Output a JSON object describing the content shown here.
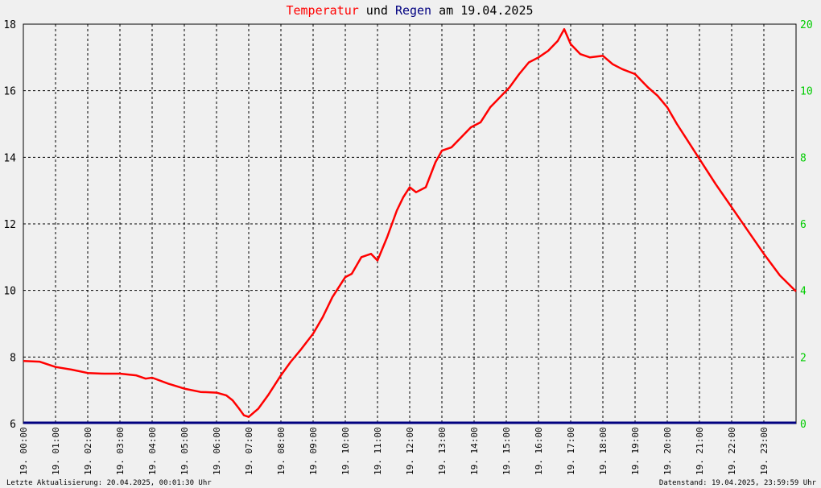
{
  "chart_data": {
    "type": "line",
    "title": {
      "part1": "Temperatur",
      "part2": " und ",
      "part3": "Regen",
      "part4": " am 19.04.2025"
    },
    "colors": {
      "temperature": "#ff0000",
      "rain": "#000080",
      "left_axis": "#000000",
      "right_axis": "#00cc00",
      "grid": "#000000",
      "background": "#f0f0f0"
    },
    "grid": true,
    "y_left": {
      "min": 6,
      "max": 18,
      "ticks": [
        6,
        8,
        10,
        12,
        14,
        16,
        18
      ]
    },
    "y_right": {
      "min": 0,
      "max": 20,
      "ticks": [
        0,
        2,
        4,
        6,
        8,
        10,
        20
      ],
      "tick_values_pos": [
        0,
        2,
        4,
        6,
        8,
        10,
        12
      ]
    },
    "x_range_hours": [
      0,
      24
    ],
    "x_ticks": [
      {
        "h": 0,
        "label": "19. 00:00"
      },
      {
        "h": 1,
        "label": "19. 01:00"
      },
      {
        "h": 2,
        "label": "19. 02:00"
      },
      {
        "h": 3,
        "label": "19. 03:00"
      },
      {
        "h": 4,
        "label": "19. 04:00"
      },
      {
        "h": 5,
        "label": "19. 05:00"
      },
      {
        "h": 6,
        "label": "19. 06:00"
      },
      {
        "h": 7,
        "label": "19. 07:00"
      },
      {
        "h": 8,
        "label": "19. 08:00"
      },
      {
        "h": 9,
        "label": "19. 09:00"
      },
      {
        "h": 10,
        "label": "19. 10:00"
      },
      {
        "h": 11,
        "label": "19. 11:00"
      },
      {
        "h": 12,
        "label": "19. 12:00"
      },
      {
        "h": 13,
        "label": "19. 13:00"
      },
      {
        "h": 14,
        "label": "19. 14:00"
      },
      {
        "h": 15,
        "label": "19. 15:00"
      },
      {
        "h": 16,
        "label": "19. 16:00"
      },
      {
        "h": 17,
        "label": "19. 17:00"
      },
      {
        "h": 18,
        "label": "19. 18:00"
      },
      {
        "h": 19,
        "label": "19. 19:00"
      },
      {
        "h": 20,
        "label": "19. 20:00"
      },
      {
        "h": 21,
        "label": "19. 21:00"
      },
      {
        "h": 22,
        "label": "19. 22:00"
      },
      {
        "h": 23,
        "label": "19. 23:00"
      }
    ],
    "series": [
      {
        "key": "temperature",
        "x": [
          0,
          0.5,
          1,
          1.5,
          2,
          2.5,
          3,
          3.5,
          3.8,
          4,
          4.5,
          5,
          5.5,
          6,
          6.3,
          6.5,
          6.7,
          6.85,
          7,
          7.3,
          7.6,
          8,
          8.3,
          8.6,
          9,
          9.3,
          9.6,
          10,
          10.2,
          10.5,
          10.8,
          11,
          11.3,
          11.6,
          11.8,
          12,
          12.2,
          12.5,
          12.8,
          13,
          13.3,
          13.6,
          13.9,
          14.2,
          14.5,
          14.8,
          15.1,
          15.4,
          15.7,
          16,
          16.3,
          16.6,
          16.8,
          17,
          17.3,
          17.6,
          18,
          18.3,
          18.6,
          19,
          19.4,
          19.7,
          20,
          20.3,
          20.6,
          21,
          21.5,
          22,
          22.5,
          23,
          23.5,
          24
        ],
        "y": [
          7.88,
          7.86,
          7.7,
          7.62,
          7.52,
          7.5,
          7.5,
          7.45,
          7.35,
          7.38,
          7.2,
          7.05,
          6.95,
          6.93,
          6.85,
          6.7,
          6.45,
          6.25,
          6.2,
          6.45,
          6.85,
          7.45,
          7.85,
          8.2,
          8.7,
          9.2,
          9.8,
          10.4,
          10.5,
          11.0,
          11.1,
          10.9,
          11.6,
          12.4,
          12.8,
          13.1,
          12.95,
          13.1,
          13.85,
          14.2,
          14.3,
          14.6,
          14.9,
          15.05,
          15.5,
          15.8,
          16.1,
          16.5,
          16.85,
          17.0,
          17.2,
          17.5,
          17.85,
          17.4,
          17.1,
          17.0,
          17.05,
          16.8,
          16.65,
          16.5,
          16.1,
          15.85,
          15.5,
          15.0,
          14.55,
          13.95,
          13.2,
          12.5,
          11.8,
          11.1,
          10.45,
          9.97
        ]
      },
      {
        "key": "rain",
        "x": [
          0,
          24
        ],
        "y": [
          0,
          0
        ]
      }
    ],
    "footer_left": "Letzte Aktualisierung: 20.04.2025, 00:01:30 Uhr",
    "footer_right": "Datenstand: 19.04.2025, 23:59:59 Uhr"
  }
}
